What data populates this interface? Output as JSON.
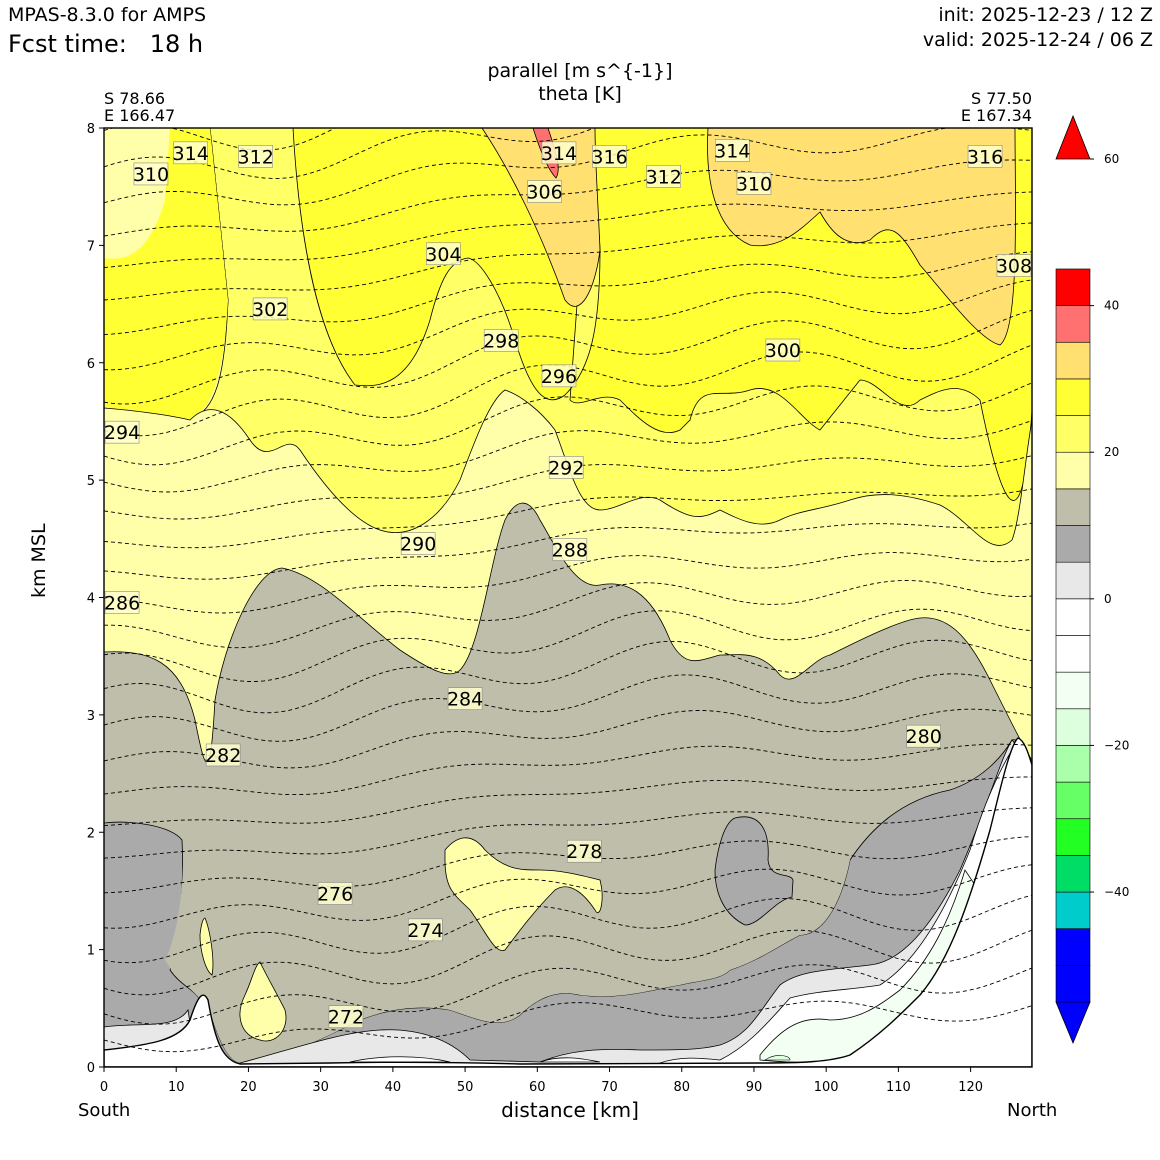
{
  "header": {
    "model": "MPAS-8.3.0 for AMPS",
    "fcst_label": "Fcst time:",
    "fcst_value": "18 h",
    "init": "init: 2025-12-23 / 12 Z",
    "valid": "valid: 2025-12-24 / 06 Z"
  },
  "chart_data": {
    "type": "cross-section",
    "title_lines": [
      "parallel [m s^{-1}]",
      "theta [K]"
    ],
    "xlabel": "distance [km]",
    "ylabel": "km MSL",
    "xlim": [
      0,
      128.5
    ],
    "ylim": [
      0,
      8
    ],
    "xticks": [
      0,
      10,
      20,
      30,
      40,
      50,
      60,
      70,
      80,
      90,
      100,
      110,
      120
    ],
    "yticks": [
      0,
      1,
      2,
      3,
      4,
      5,
      6,
      7,
      8
    ],
    "endpoints": {
      "left": {
        "lat": "S 78.66",
        "lon": "E 166.47",
        "label": "South"
      },
      "right": {
        "lat": "S 77.50",
        "lon": "E 167.34",
        "label": "North"
      }
    },
    "colorbar": {
      "levels": [
        -55,
        -50,
        -45,
        -40,
        -35,
        -30,
        -25,
        -20,
        -15,
        -10,
        -5,
        0,
        5,
        10,
        15,
        20,
        25,
        30,
        35,
        40,
        45,
        50,
        55,
        60
      ],
      "colors": [
        "#0000ff",
        "#0000ff",
        "#00cccc",
        "#00dd66",
        "#22ff22",
        "#66ff66",
        "#aaffaa",
        "#ddffdd",
        "#f2fff2",
        "#ffffff",
        "#ffffff",
        "#e8e8e8",
        "#aaaaaa",
        "#bebeaa",
        "#ffffaa",
        "#ffff66",
        "#ffff33",
        "#ffe070",
        "#ff7070",
        "#ff0000"
      ],
      "over_color": "#ff0000",
      "under_color": "#0000ff",
      "ticks": [
        60,
        40,
        20,
        0,
        -20,
        -40
      ],
      "tick_labels": [
        "60",
        "40",
        "20",
        "0",
        "−20",
        "−40"
      ]
    },
    "theta_contour_labels": [
      {
        "value": "314",
        "x": 12,
        "y": 7.78
      },
      {
        "value": "312",
        "x": 21,
        "y": 7.75
      },
      {
        "value": "310",
        "x": 6.5,
        "y": 7.6
      },
      {
        "value": "304",
        "x": 47,
        "y": 6.92
      },
      {
        "value": "302",
        "x": 23,
        "y": 6.45
      },
      {
        "value": "298",
        "x": 55,
        "y": 6.18
      },
      {
        "value": "296",
        "x": 63,
        "y": 5.88
      },
      {
        "value": "294",
        "x": 2.5,
        "y": 5.4
      },
      {
        "value": "292",
        "x": 64,
        "y": 5.1
      },
      {
        "value": "290",
        "x": 43.5,
        "y": 4.45
      },
      {
        "value": "288",
        "x": 64.5,
        "y": 4.4
      },
      {
        "value": "286",
        "x": 2.5,
        "y": 3.95
      },
      {
        "value": "284",
        "x": 50,
        "y": 3.13
      },
      {
        "value": "282",
        "x": 16.5,
        "y": 2.65
      },
      {
        "value": "280",
        "x": 113.5,
        "y": 2.81
      },
      {
        "value": "278",
        "x": 66.5,
        "y": 1.83
      },
      {
        "value": "276",
        "x": 32,
        "y": 1.47
      },
      {
        "value": "274",
        "x": 44.5,
        "y": 1.16
      },
      {
        "value": "272",
        "x": 33.5,
        "y": 0.42
      },
      {
        "value": "314",
        "x": 63,
        "y": 7.78
      },
      {
        "value": "316",
        "x": 70,
        "y": 7.75
      },
      {
        "value": "306",
        "x": 61,
        "y": 7.45
      },
      {
        "value": "312",
        "x": 77.5,
        "y": 7.58
      },
      {
        "value": "314",
        "x": 87,
        "y": 7.8
      },
      {
        "value": "310",
        "x": 90,
        "y": 7.52
      },
      {
        "value": "316",
        "x": 122,
        "y": 7.75
      },
      {
        "value": "308",
        "x": 126,
        "y": 6.82
      },
      {
        "value": "300",
        "x": 94,
        "y": 6.1
      }
    ]
  }
}
